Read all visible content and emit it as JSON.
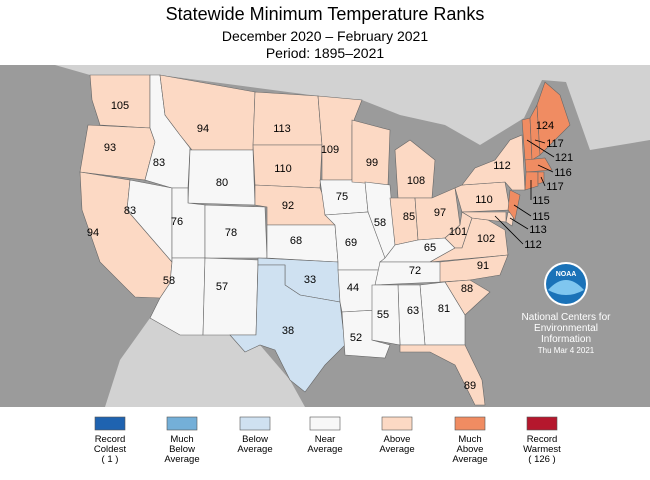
{
  "header": {
    "title": "Statewide Minimum Temperature Ranks",
    "subtitle": "December 2020 – February 2021",
    "period": "Period: 1895–2021"
  },
  "states": [
    {
      "rank": 105,
      "class": 4
    },
    {
      "rank": 93,
      "class": 4
    },
    {
      "rank": 94,
      "class": 4
    },
    {
      "rank": 83,
      "class": 3
    },
    {
      "rank": 83,
      "class": 3
    },
    {
      "rank": 94,
      "class": 4
    },
    {
      "rank": 80,
      "class": 3
    },
    {
      "rank": 76,
      "class": 3
    },
    {
      "rank": 58,
      "class": 3
    },
    {
      "rank": 78,
      "class": 3
    },
    {
      "rank": 57,
      "class": 3
    },
    {
      "rank": 113,
      "class": 4
    },
    {
      "rank": 110,
      "class": 4
    },
    {
      "rank": 92,
      "class": 4
    },
    {
      "rank": 68,
      "class": 3
    },
    {
      "rank": 33,
      "class": 2
    },
    {
      "rank": 38,
      "class": 2
    },
    {
      "rank": 109,
      "class": 4
    },
    {
      "rank": 75,
      "class": 3
    },
    {
      "rank": 99,
      "class": 4
    },
    {
      "rank": 58,
      "class": 3
    },
    {
      "rank": 69,
      "class": 3
    },
    {
      "rank": 44,
      "class": 3
    },
    {
      "rank": 52,
      "class": 3
    },
    {
      "rank": 108,
      "class": 4
    },
    {
      "rank": 85,
      "class": 4
    },
    {
      "rank": 97,
      "class": 4
    },
    {
      "rank": 65,
      "class": 3
    },
    {
      "rank": 101,
      "class": 4
    },
    {
      "rank": 102,
      "class": 4
    },
    {
      "rank": 72,
      "class": 3
    },
    {
      "rank": 91,
      "class": 4
    },
    {
      "rank": 88,
      "class": 4
    },
    {
      "rank": 81,
      "class": 3
    },
    {
      "rank": 63,
      "class": 3
    },
    {
      "rank": 55,
      "class": 3
    },
    {
      "rank": 89,
      "class": 4
    },
    {
      "rank": 110,
      "class": 4
    },
    {
      "rank": 112,
      "class": 4
    },
    {
      "rank": 113,
      "class": 4
    },
    {
      "rank": 112,
      "class": 4
    },
    {
      "rank": 115,
      "class": 5
    },
    {
      "rank": 121,
      "class": 5
    },
    {
      "rank": 117,
      "class": 5
    },
    {
      "rank": 124,
      "class": 5
    },
    {
      "rank": 116,
      "class": 5
    },
    {
      "rank": 115,
      "class": 5
    },
    {
      "rank": 117,
      "class": 5
    }
  ],
  "legend": [
    {
      "label": [
        "Record",
        "Coldest",
        "( 1 )"
      ],
      "color": "#1f63b0"
    },
    {
      "label": [
        "Much",
        "Below",
        "Average"
      ],
      "color": "#74afd8"
    },
    {
      "label": [
        "Below",
        "Average"
      ],
      "color": "#cfe1f1"
    },
    {
      "label": [
        "Near",
        "Average"
      ],
      "color": "#f7f7f7"
    },
    {
      "label": [
        "Above",
        "Average"
      ],
      "color": "#fcd9c4"
    },
    {
      "label": [
        "Much",
        "Above",
        "Average"
      ],
      "color": "#f08c62"
    },
    {
      "label": [
        "Record",
        "Warmest",
        "( 126 )"
      ],
      "color": "#b5172d"
    }
  ],
  "logo": "NOAA",
  "credit": [
    "National Centers for",
    "Environmental",
    "Information",
    "Thu Mar  4 2021"
  ]
}
